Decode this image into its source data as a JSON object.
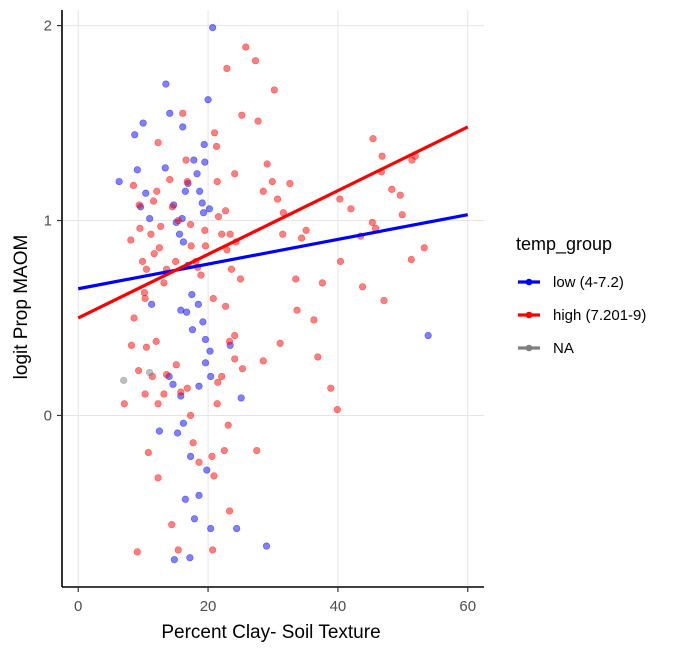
{
  "chart_data": {
    "type": "scatter",
    "xlabel": "Percent Clay- Soil Texture",
    "ylabel": "logit Prop MAOM",
    "xlim": [
      -2.5,
      62.5
    ],
    "ylim": [
      -0.88,
      2.08
    ],
    "x_ticks": [
      "0",
      "20",
      "40",
      "60"
    ],
    "y_ticks": [
      "0",
      "1",
      "2"
    ],
    "x_tick_values": [
      0,
      20,
      40,
      60
    ],
    "y_tick_values": [
      0,
      1,
      2
    ],
    "grid": true,
    "legend_title": "temp_group",
    "legend_position": "right",
    "series": [
      {
        "name": "low (4-7.2)",
        "color": "#0000ff",
        "points": [
          [
            6.3,
            1.2
          ],
          [
            8.7,
            1.44
          ],
          [
            10,
            1.5
          ],
          [
            9.1,
            1.26
          ],
          [
            10.4,
            1.14
          ],
          [
            9.6,
            1.07
          ],
          [
            11,
            1.01
          ],
          [
            11.3,
            0.57
          ],
          [
            13.5,
            1.7
          ],
          [
            14.1,
            1.55
          ],
          [
            16.1,
            1.48
          ],
          [
            13.4,
            1.27
          ],
          [
            14.7,
            1.08
          ],
          [
            15.1,
            0.99
          ],
          [
            15.6,
            0.93
          ],
          [
            16,
            1.01
          ],
          [
            16.5,
            1.15
          ],
          [
            16.9,
            1.19
          ],
          [
            17.8,
            1.31
          ],
          [
            18.3,
            1.24
          ],
          [
            18.7,
            1.15
          ],
          [
            19.1,
            1.09
          ],
          [
            19.5,
            1.3
          ],
          [
            19.4,
            1.39
          ],
          [
            20,
            1.62
          ],
          [
            20.7,
            1.99
          ],
          [
            19.3,
            1.04
          ],
          [
            20.2,
            1.06
          ],
          [
            16.2,
            0.89
          ],
          [
            16.9,
            0.77
          ],
          [
            17.5,
            0.62
          ],
          [
            18.5,
            0.57
          ],
          [
            19.2,
            0.48
          ],
          [
            19.6,
            0.39
          ],
          [
            20.3,
            0.33
          ],
          [
            16.7,
            0.53
          ],
          [
            15.8,
            0.54
          ],
          [
            17.6,
            0.44
          ],
          [
            14,
            0.2
          ],
          [
            14.6,
            0.16
          ],
          [
            15.8,
            0.1
          ],
          [
            18.6,
            0.15
          ],
          [
            19.6,
            0.27
          ],
          [
            20.4,
            0.2
          ],
          [
            23.4,
            0.36
          ],
          [
            25.1,
            0.09
          ],
          [
            12.5,
            -0.08
          ],
          [
            15.3,
            -0.09
          ],
          [
            16.2,
            -0.04
          ],
          [
            17.3,
            -0.21
          ],
          [
            19.8,
            -0.28
          ],
          [
            16.5,
            -0.43
          ],
          [
            18.6,
            -0.41
          ],
          [
            17.9,
            -0.53
          ],
          [
            20.4,
            -0.58
          ],
          [
            24.4,
            -0.58
          ],
          [
            14.8,
            -0.74
          ],
          [
            17.2,
            -0.73
          ],
          [
            29,
            -0.67
          ],
          [
            53.9,
            0.41
          ]
        ],
        "trend": [
          [
            0,
            0.65
          ],
          [
            60,
            1.03
          ]
        ]
      },
      {
        "name": "high (7.201-9)",
        "color": "#ff0000",
        "points": [
          [
            8.1,
            0.9
          ],
          [
            8.5,
            1.18
          ],
          [
            9.4,
            1.08
          ],
          [
            9.5,
            0.96
          ],
          [
            9.9,
            0.79
          ],
          [
            10.5,
            0.75
          ],
          [
            10.3,
            0.6
          ],
          [
            10.2,
            0.63
          ],
          [
            11.2,
            0.93
          ],
          [
            11.6,
            1.1
          ],
          [
            11.7,
            0.83
          ],
          [
            12.3,
            1.4
          ],
          [
            12.1,
            1.15
          ],
          [
            12.5,
            0.86
          ],
          [
            12.7,
            0.97
          ],
          [
            13.6,
            0.75
          ],
          [
            13.2,
            0.68
          ],
          [
            14.1,
            1.21
          ],
          [
            14.5,
            1.07
          ],
          [
            15.4,
            1.0
          ],
          [
            15,
            0.79
          ],
          [
            16.1,
            1.55
          ],
          [
            16.6,
            1.31
          ],
          [
            16.8,
            1.2
          ],
          [
            17.3,
            0.98
          ],
          [
            17.4,
            0.87
          ],
          [
            18.1,
            0.79
          ],
          [
            18.4,
            0.76
          ],
          [
            18.9,
            0.72
          ],
          [
            19.6,
            0.87
          ],
          [
            21,
            1.45
          ],
          [
            21.3,
            1.38
          ],
          [
            21.4,
            1.2
          ],
          [
            21.6,
            1.02
          ],
          [
            22.1,
            0.93
          ],
          [
            22.9,
            1.78
          ],
          [
            22.7,
            1.05
          ],
          [
            22.9,
            0.85
          ],
          [
            23.4,
            0.93
          ],
          [
            23.6,
            0.75
          ],
          [
            24.1,
            1.24
          ],
          [
            24.3,
            0.89
          ],
          [
            25,
            0.7
          ],
          [
            25.2,
            1.54
          ],
          [
            25.8,
            1.89
          ],
          [
            27.3,
            1.82
          ],
          [
            27.7,
            1.51
          ],
          [
            28.5,
            1.15
          ],
          [
            29.1,
            1.29
          ],
          [
            29.9,
            1.2
          ],
          [
            30.2,
            1.67
          ],
          [
            30.7,
            1.11
          ],
          [
            31.6,
            1.04
          ],
          [
            32.6,
            1.19
          ],
          [
            34.4,
            0.91
          ],
          [
            35.1,
            0.95
          ],
          [
            33.5,
            0.7
          ],
          [
            33.7,
            0.54
          ],
          [
            37.6,
            0.68
          ],
          [
            36.3,
            0.49
          ],
          [
            36.9,
            0.3
          ],
          [
            38.9,
            0.14
          ],
          [
            39.9,
            0.03
          ],
          [
            19.5,
            0.95
          ],
          [
            20.8,
            0.6
          ],
          [
            22.7,
            0.56
          ],
          [
            23.3,
            0.38
          ],
          [
            24.1,
            0.29
          ],
          [
            25.3,
            0.24
          ],
          [
            24.1,
            0.41
          ],
          [
            22.1,
            0.2
          ],
          [
            21.5,
            0.17
          ],
          [
            21.4,
            0.06
          ],
          [
            23.1,
            -0.05
          ],
          [
            22.5,
            -0.18
          ],
          [
            20.6,
            -0.21
          ],
          [
            20.9,
            -0.31
          ],
          [
            18.6,
            -0.24
          ],
          [
            17.7,
            -0.14
          ],
          [
            17.3,
            0.0
          ],
          [
            16.8,
            0.14
          ],
          [
            15.1,
            0.26
          ],
          [
            15.8,
            0.12
          ],
          [
            13.6,
            0.21
          ],
          [
            13.2,
            0.11
          ],
          [
            12.3,
            0.06
          ],
          [
            9.3,
            0.23
          ],
          [
            10.3,
            0.11
          ],
          [
            7.1,
            0.06
          ],
          [
            8.2,
            0.36
          ],
          [
            8.6,
            0.5
          ],
          [
            10.5,
            0.35
          ],
          [
            11.4,
            0.2
          ],
          [
            12,
            0.38
          ],
          [
            10.8,
            -0.19
          ],
          [
            12.3,
            -0.32
          ],
          [
            14.4,
            -0.56
          ],
          [
            15.4,
            -0.69
          ],
          [
            9.1,
            -0.7
          ],
          [
            20.7,
            -0.69
          ],
          [
            23.3,
            -0.49
          ],
          [
            27.5,
            -0.18
          ],
          [
            28.5,
            0.28
          ],
          [
            31.1,
            0.37
          ],
          [
            31.5,
            0.93
          ],
          [
            40.3,
            1.11
          ],
          [
            42,
            1.06
          ],
          [
            43.5,
            0.92
          ],
          [
            45.3,
            0.99
          ],
          [
            45.8,
            0.96
          ],
          [
            46.7,
            1.25
          ],
          [
            46.8,
            1.33
          ],
          [
            48.3,
            1.16
          ],
          [
            49.6,
            1.13
          ],
          [
            51.4,
            1.31
          ],
          [
            51.9,
            1.33
          ],
          [
            49.9,
            1.03
          ],
          [
            51.3,
            0.8
          ],
          [
            53.3,
            0.86
          ],
          [
            40.4,
            0.79
          ],
          [
            43.8,
            0.66
          ],
          [
            47.1,
            0.59
          ],
          [
            45.4,
            1.42
          ]
        ],
        "trend": [
          [
            0,
            0.5
          ],
          [
            60,
            1.48
          ]
        ]
      },
      {
        "name": "NA",
        "color": "#7f7f7f",
        "points": [
          [
            7,
            0.18
          ],
          [
            11,
            0.22
          ]
        ],
        "trend": []
      }
    ]
  }
}
